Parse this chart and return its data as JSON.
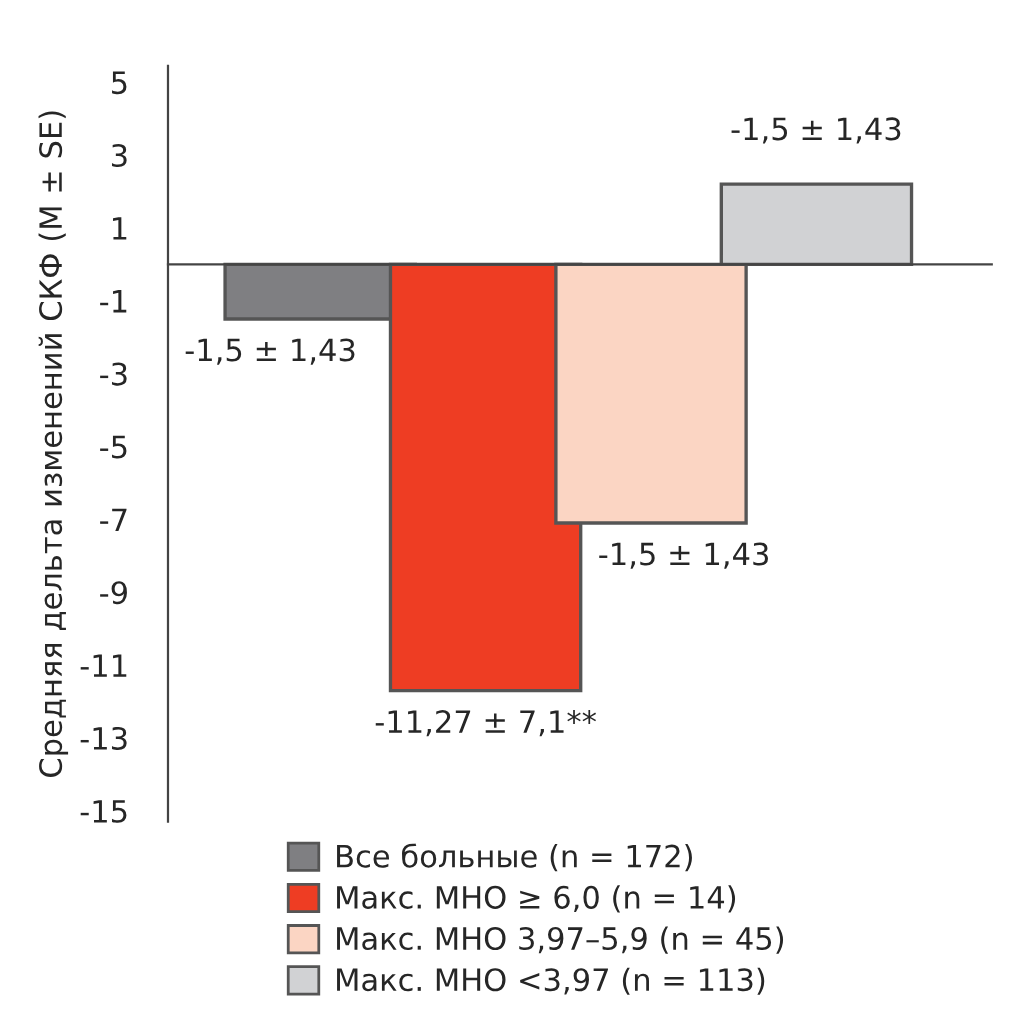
{
  "chart_data": {
    "type": "bar",
    "ylabel": "Средняя дельта изменений СКФ (M ± SE)",
    "categories": [
      null,
      null,
      null,
      null
    ],
    "series": [
      {
        "name": "Все больные (n = 172)",
        "color": "#7f7f82",
        "values": [
          -1.5,
          null,
          null,
          null
        ]
      },
      {
        "name": "Макс. МНО ≥ 6,0 (n = 14)",
        "color": "#ee3d23",
        "values": [
          null,
          -11.7,
          null,
          null
        ]
      },
      {
        "name": "Макс. МНО 3,97–5,9 (n = 45)",
        "color": "#fbd5c3",
        "values": [
          null,
          null,
          -7.1,
          null
        ]
      },
      {
        "name": "Макс. МНО <3,97 (n = 113)",
        "color": "#d1d2d4",
        "values": [
          null,
          null,
          null,
          2.2
        ]
      }
    ],
    "value_labels": [
      "-1,5 ± 1,43",
      "-11,27 ± 7,1**",
      "-1,5 ± 1,43",
      "-1,5 ± 1,43"
    ],
    "ylim": [
      -15.3,
      5.45
    ],
    "yticks": [
      5,
      3,
      1,
      -1,
      -3,
      -5,
      -7,
      -9,
      -11,
      -13,
      -15
    ],
    "grid": false,
    "legend": "bottom"
  }
}
